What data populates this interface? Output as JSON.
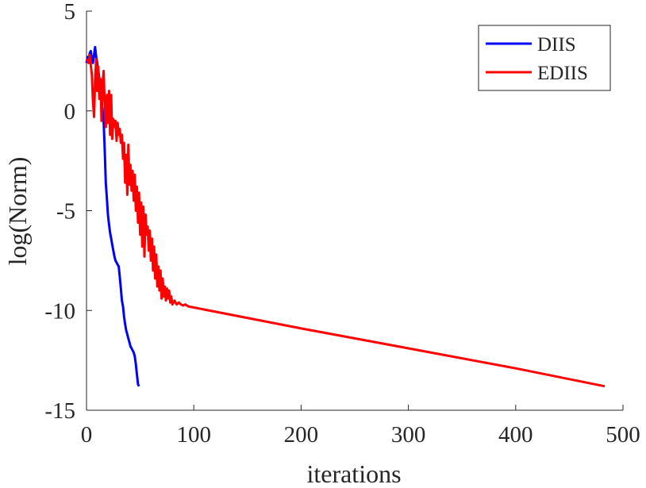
{
  "chart_data": {
    "type": "line",
    "title": "",
    "xlabel": "iterations",
    "ylabel": "log(Norm)",
    "xlim": [
      0,
      500
    ],
    "ylim": [
      -15,
      5
    ],
    "xticks": [
      "0",
      "100",
      "200",
      "300",
      "400",
      "500"
    ],
    "yticks": [
      "5",
      "0",
      "-5",
      "-10",
      "-15"
    ],
    "grid": false,
    "legend_position": "top-right",
    "series": [
      {
        "name": "DIIS",
        "color": "#0000ff",
        "points": [
          [
            0,
            2.4
          ],
          [
            1,
            2.7
          ],
          [
            2,
            2.5
          ],
          [
            3,
            2.9
          ],
          [
            4,
            3.0
          ],
          [
            5,
            2.6
          ],
          [
            6,
            2.4
          ],
          [
            7,
            2.8
          ],
          [
            8,
            3.2
          ],
          [
            9,
            2.7
          ],
          [
            10,
            2.4
          ],
          [
            11,
            2.0
          ],
          [
            12,
            1.6
          ],
          [
            13,
            1.2
          ],
          [
            14,
            0.4
          ],
          [
            15,
            0.0
          ],
          [
            16,
            -0.5
          ],
          [
            17,
            -2.0
          ],
          [
            18,
            -3.6
          ],
          [
            19,
            -4.4
          ],
          [
            20,
            -5.2
          ],
          [
            21,
            -5.7
          ],
          [
            22,
            -6.1
          ],
          [
            23,
            -6.4
          ],
          [
            24,
            -6.7
          ],
          [
            25,
            -7.0
          ],
          [
            26,
            -7.3
          ],
          [
            27,
            -7.5
          ],
          [
            28,
            -7.6
          ],
          [
            29,
            -7.7
          ],
          [
            30,
            -7.8
          ],
          [
            31,
            -8.3
          ],
          [
            32,
            -8.9
          ],
          [
            33,
            -9.5
          ],
          [
            34,
            -9.8
          ],
          [
            35,
            -10.3
          ],
          [
            36,
            -10.7
          ],
          [
            37,
            -11.0
          ],
          [
            38,
            -11.2
          ],
          [
            39,
            -11.4
          ],
          [
            40,
            -11.6
          ],
          [
            41,
            -11.8
          ],
          [
            42,
            -11.9
          ],
          [
            43,
            -12.0
          ],
          [
            44,
            -12.1
          ],
          [
            45,
            -12.3
          ],
          [
            46,
            -12.7
          ],
          [
            47,
            -13.2
          ],
          [
            48,
            -13.7
          ],
          [
            49,
            -13.8
          ]
        ]
      },
      {
        "name": "EDIIS",
        "color": "#ff0000",
        "points": [
          [
            0,
            2.6
          ],
          [
            2,
            2.4
          ],
          [
            3,
            2.8
          ],
          [
            4,
            2.3
          ],
          [
            5,
            1.8
          ],
          [
            6,
            0.5
          ],
          [
            7,
            -0.3
          ],
          [
            8,
            1.5
          ],
          [
            9,
            2.6
          ],
          [
            10,
            1.0
          ],
          [
            11,
            2.2
          ],
          [
            12,
            0.6
          ],
          [
            13,
            1.6
          ],
          [
            14,
            -0.5
          ],
          [
            15,
            1.4
          ],
          [
            16,
            2.0
          ],
          [
            17,
            0.2
          ],
          [
            18,
            -0.8
          ],
          [
            19,
            0.8
          ],
          [
            20,
            -0.6
          ],
          [
            21,
            1.0
          ],
          [
            22,
            -1.2
          ],
          [
            23,
            0.8
          ],
          [
            24,
            -1.4
          ],
          [
            25,
            -0.4
          ],
          [
            26,
            -0.8
          ],
          [
            27,
            -0.5
          ],
          [
            28,
            -1.5
          ],
          [
            29,
            -0.6
          ],
          [
            30,
            -1.2
          ],
          [
            31,
            -0.9
          ],
          [
            32,
            -1.6
          ],
          [
            33,
            -1.2
          ],
          [
            34,
            -2.4
          ],
          [
            35,
            -1.6
          ],
          [
            36,
            -3.6
          ],
          [
            37,
            -2.2
          ],
          [
            38,
            -4.2
          ],
          [
            39,
            -1.7
          ],
          [
            40,
            -3.7
          ],
          [
            41,
            -2.7
          ],
          [
            42,
            -4.0
          ],
          [
            43,
            -3.0
          ],
          [
            44,
            -4.5
          ],
          [
            45,
            -3.2
          ],
          [
            46,
            -5.0
          ],
          [
            47,
            -3.8
          ],
          [
            48,
            -5.6
          ],
          [
            49,
            -4.1
          ],
          [
            50,
            -6.2
          ],
          [
            51,
            -4.6
          ],
          [
            52,
            -6.8
          ],
          [
            53,
            -4.8
          ],
          [
            54,
            -7.3
          ],
          [
            55,
            -5.2
          ],
          [
            56,
            -6.2
          ],
          [
            57,
            -5.8
          ],
          [
            58,
            -7.0
          ],
          [
            59,
            -6.0
          ],
          [
            60,
            -7.5
          ],
          [
            61,
            -6.4
          ],
          [
            62,
            -8.0
          ],
          [
            63,
            -6.8
          ],
          [
            64,
            -8.4
          ],
          [
            65,
            -7.2
          ],
          [
            66,
            -8.8
          ],
          [
            67,
            -7.8
          ],
          [
            68,
            -9.0
          ],
          [
            69,
            -8.0
          ],
          [
            70,
            -9.4
          ],
          [
            71,
            -8.4
          ],
          [
            72,
            -9.3
          ],
          [
            73,
            -8.8
          ],
          [
            74,
            -9.5
          ],
          [
            75,
            -8.9
          ],
          [
            76,
            -9.4
          ],
          [
            77,
            -9.0
          ],
          [
            78,
            -9.6
          ],
          [
            79,
            -9.3
          ],
          [
            80,
            -9.7
          ],
          [
            82,
            -9.5
          ],
          [
            84,
            -9.7
          ],
          [
            86,
            -9.6
          ],
          [
            88,
            -9.7
          ],
          [
            90,
            -9.75
          ],
          [
            92,
            -9.7
          ],
          [
            95,
            -9.8
          ],
          [
            100,
            -9.85
          ],
          [
            200,
            -10.9
          ],
          [
            300,
            -11.9
          ],
          [
            400,
            -12.9
          ],
          [
            483,
            -13.8
          ]
        ]
      }
    ]
  }
}
